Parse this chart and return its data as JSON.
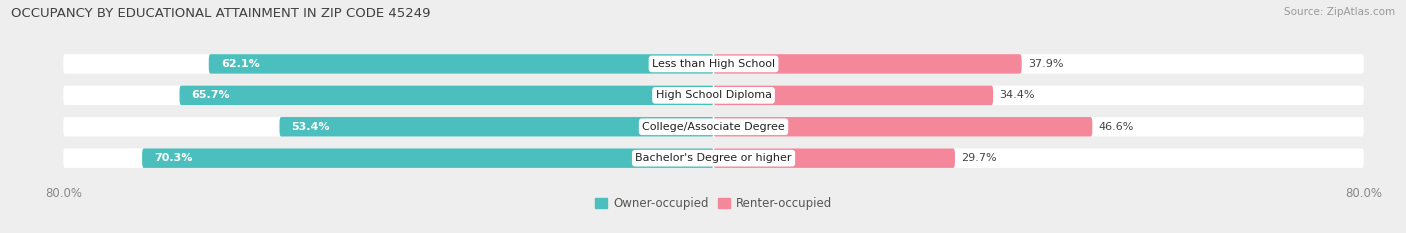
{
  "title": "OCCUPANCY BY EDUCATIONAL ATTAINMENT IN ZIP CODE 45249",
  "source": "Source: ZipAtlas.com",
  "categories": [
    "Less than High School",
    "High School Diploma",
    "College/Associate Degree",
    "Bachelor's Degree or higher"
  ],
  "owner_values": [
    62.1,
    65.7,
    53.4,
    70.3
  ],
  "renter_values": [
    37.9,
    34.4,
    46.6,
    29.7
  ],
  "owner_color": "#4BBFBE",
  "renter_color": "#F4889A",
  "renter_color_dark": "#F06080",
  "bg_color": "#eeeeee",
  "bar_bg_color": "#ffffff",
  "title_color": "#404040",
  "label_color_white": "#ffffff",
  "label_color_dark": "#555555",
  "axis_label_color": "#888888",
  "xlim": 80.0,
  "legend_owner": "Owner-occupied",
  "legend_renter": "Renter-occupied",
  "bar_height": 0.62,
  "title_fontsize": 9.5,
  "source_fontsize": 7.5,
  "value_fontsize": 8,
  "category_fontsize": 8
}
